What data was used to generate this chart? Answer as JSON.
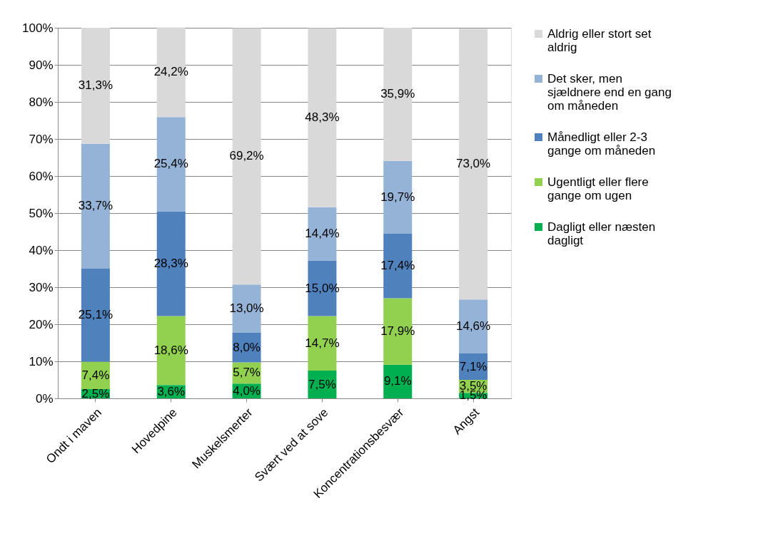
{
  "chart_data": {
    "type": "bar",
    "stacked": true,
    "categories": [
      "Ondt i maven",
      "Hovedpine",
      "Muskelsmerter",
      "Svært ved at sove",
      "Koncentrationsbesvær",
      "Angst"
    ],
    "series": [
      {
        "name": "Dagligt eller næsten dagligt",
        "color": "#00b050",
        "values": [
          2.5,
          3.6,
          4.0,
          7.5,
          9.1,
          1.5
        ],
        "value_labels": [
          "2,5%",
          "3,6%",
          "4,0%",
          "7,5%",
          "9,1%",
          "1,5%"
        ]
      },
      {
        "name": "Ugentligt eller flere gange om ugen",
        "color": "#92d050",
        "values": [
          7.4,
          18.6,
          5.7,
          14.7,
          17.9,
          3.5
        ],
        "value_labels": [
          "7,4%",
          "18,6%",
          "5,7%",
          "14,7%",
          "17,9%",
          "3,5%"
        ]
      },
      {
        "name": "Månedligt eller 2-3 gange om måneden",
        "color": "#4f81bd",
        "values": [
          25.1,
          28.3,
          8.0,
          15.0,
          17.4,
          7.1
        ],
        "value_labels": [
          "25,1%",
          "28,3%",
          "8,0%",
          "15,0%",
          "17,4%",
          "7,1%"
        ]
      },
      {
        "name": "Det sker, men sjældnere end en gang om måneden",
        "color": "#95b3d7",
        "values": [
          33.7,
          25.4,
          13.0,
          14.4,
          19.7,
          14.6
        ],
        "value_labels": [
          "33,7%",
          "25,4%",
          "13,0%",
          "14,4%",
          "19,7%",
          "14,6%"
        ]
      },
      {
        "name": "Aldrig eller stort set aldrig",
        "color": "#d9d9d9",
        "values": [
          31.3,
          24.2,
          69.2,
          48.3,
          35.9,
          73.0
        ],
        "value_labels": [
          "31,3%",
          "24,2%",
          "69,2%",
          "48,3%",
          "35,9%",
          "73,0%"
        ]
      }
    ],
    "ylim": [
      0,
      100
    ],
    "yticks": [
      {
        "value": 0,
        "label": "0%"
      },
      {
        "value": 10,
        "label": "10%"
      },
      {
        "value": 20,
        "label": "20%"
      },
      {
        "value": 30,
        "label": "30%"
      },
      {
        "value": 40,
        "label": "40%"
      },
      {
        "value": 50,
        "label": "50%"
      },
      {
        "value": 60,
        "label": "60%"
      },
      {
        "value": 70,
        "label": "70%"
      },
      {
        "value": 80,
        "label": "80%"
      },
      {
        "value": 90,
        "label": "90%"
      },
      {
        "value": 100,
        "label": "100%"
      }
    ],
    "grid": "y",
    "legend": "right"
  }
}
